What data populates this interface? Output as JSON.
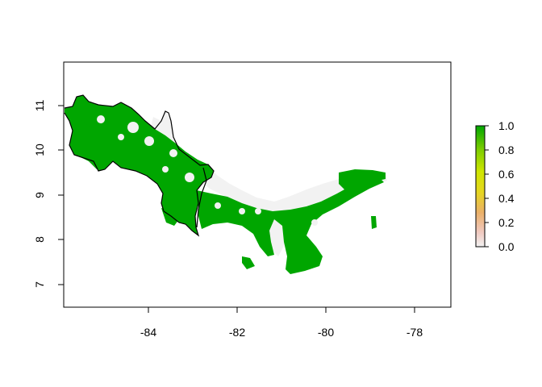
{
  "chart_data": {
    "type": "heatmap",
    "title": "",
    "xlabel": "",
    "ylabel": "",
    "xlim": [
      -86,
      -77.3
    ],
    "ylim": [
      6.5,
      11.9
    ],
    "x_ticks": [
      "-84",
      "-82",
      "-80",
      "-78"
    ],
    "y_ticks": [
      "7",
      "8",
      "9",
      "10",
      "11"
    ],
    "legend": {
      "placement": "right",
      "range": [
        0.0,
        1.0
      ],
      "ticks": [
        "0.0",
        "0.2",
        "0.4",
        "0.6",
        "0.8",
        "1.0"
      ],
      "colors": [
        "#f2f2f2",
        "#f0c9c0",
        "#ebb06a",
        "#e6d620",
        "#cfe600",
        "#7fce00",
        "#00a600"
      ]
    },
    "dominant_value": 1.0,
    "land_color": "#00a600",
    "low_value_color": "#f2f2f2",
    "border_color": "#000000"
  }
}
